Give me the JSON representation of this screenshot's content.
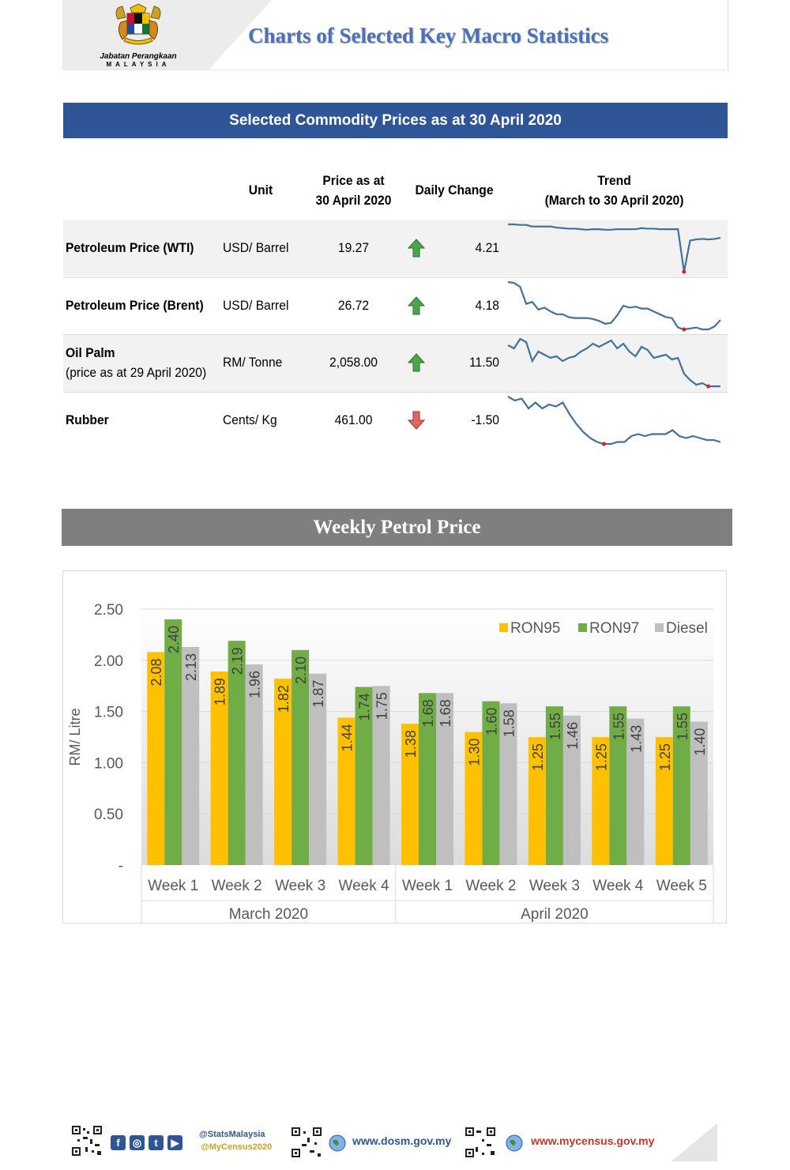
{
  "header": {
    "title": "Charts of Selected Key Macro Statistics",
    "agency_line1": "Jabatan Perangkaan",
    "agency_line2": "MALAYSIA"
  },
  "commodity": {
    "banner": "Selected Commodity Prices as at 30 April 2020",
    "columns": {
      "unit": "Unit",
      "price_line1": "Price as at",
      "price_line2": "30 April 2020",
      "change": "Daily Change",
      "trend_line1": "Trend",
      "trend_line2": "(March to 30 April 2020)"
    },
    "rows": [
      {
        "name": "Petroleum Price (WTI)",
        "note": "",
        "unit": "USD/ Barrel",
        "price": "19.27",
        "direction": "up",
        "change": "4.21",
        "trend": [
          88,
          88,
          87,
          87,
          84,
          84,
          84,
          84,
          82,
          81,
          80,
          80,
          79,
          78,
          79,
          79,
          78,
          78,
          79,
          79,
          79,
          79,
          81,
          80,
          80,
          79,
          79,
          79,
          79,
          0,
          58,
          60,
          61,
          60,
          61,
          63
        ]
      },
      {
        "name": "Petroleum Price (Brent)",
        "note": "",
        "unit": "USD/ Barrel",
        "price": "26.72",
        "direction": "up",
        "change": "4.18",
        "trend": [
          95,
          94,
          90,
          72,
          74,
          66,
          68,
          64,
          61,
          61,
          58,
          57,
          57,
          57,
          56,
          54,
          51,
          52,
          60,
          70,
          68,
          69,
          67,
          67,
          64,
          61,
          58,
          57,
          47,
          45,
          46,
          47,
          45,
          45,
          48,
          55
        ]
      },
      {
        "name": "Oil Palm",
        "note": "(price as at 29 April 2020)",
        "unit": "RM/ Tonne",
        "price": "2,058.00",
        "direction": "up",
        "change": "11.50",
        "trend": [
          70,
          68,
          74,
          72,
          60,
          66,
          64,
          62,
          63,
          60,
          62,
          63,
          66,
          68,
          71,
          69,
          71,
          73,
          68,
          71,
          66,
          63,
          69,
          67,
          62,
          63,
          64,
          61,
          62,
          52,
          48,
          45,
          46,
          44,
          44,
          44
        ]
      },
      {
        "name": "Rubber",
        "note": "",
        "unit": "Cents/ Kg",
        "price": "461.00",
        "direction": "down",
        "change": "-1.50",
        "trend": [
          71,
          69,
          70,
          65,
          68,
          65,
          67,
          66,
          68,
          62,
          57,
          53,
          50,
          48,
          47,
          47,
          48,
          48,
          51,
          52,
          51,
          52,
          52,
          52,
          54,
          51,
          50,
          51,
          50,
          49,
          49,
          48
        ]
      }
    ]
  },
  "petrol": {
    "banner": "Weekly Petrol Price"
  },
  "chart_data": {
    "type": "bar",
    "ylabel": "RM/ Litre",
    "ylim": [
      0,
      2.5
    ],
    "yticks": [
      "-",
      "0.50",
      "1.00",
      "1.50",
      "2.00",
      "2.50"
    ],
    "categories": [
      "Week 1",
      "Week 2",
      "Week 3",
      "Week 4",
      "Week 1",
      "Week 2",
      "Week 3",
      "Week 4",
      "Week 5"
    ],
    "groups": [
      {
        "label": "March 2020",
        "count": 4
      },
      {
        "label": "April 2020",
        "count": 5
      }
    ],
    "series": [
      {
        "name": "RON95",
        "color": "#ffc000",
        "values": [
          2.08,
          1.89,
          1.82,
          1.44,
          1.38,
          1.3,
          1.25,
          1.25,
          1.25
        ],
        "labels": [
          "2.08",
          "1.89",
          "1.82",
          "1.44",
          "1.38",
          "1.30",
          "1.25",
          "1.25",
          "1.25"
        ]
      },
      {
        "name": "RON97",
        "color": "#70ad47",
        "values": [
          2.4,
          2.19,
          2.1,
          1.74,
          1.68,
          1.6,
          1.55,
          1.55,
          1.55
        ],
        "labels": [
          "2.40",
          "2.19",
          "2.10",
          "1.74",
          "1.68",
          "1.60",
          "1.55",
          "1.55",
          "1.55"
        ]
      },
      {
        "name": "Diesel",
        "color": "#bfbfbf",
        "values": [
          2.13,
          1.96,
          1.87,
          1.75,
          1.68,
          1.58,
          1.46,
          1.43,
          1.4
        ],
        "labels": [
          "2.13",
          "1.96",
          "1.87",
          "1.75",
          "1.68",
          "1.58",
          "1.46",
          "1.43",
          "1.40"
        ]
      }
    ],
    "legend_position": "top-right",
    "grid": true
  },
  "footer": {
    "handle1": "@StatsMalaysia",
    "handle2": "@MyCensus2020",
    "url1": "www.dosm.gov.my",
    "url2": "www.mycensus.gov.my",
    "social_icons": [
      "f",
      "◎",
      "t",
      "▶"
    ]
  }
}
